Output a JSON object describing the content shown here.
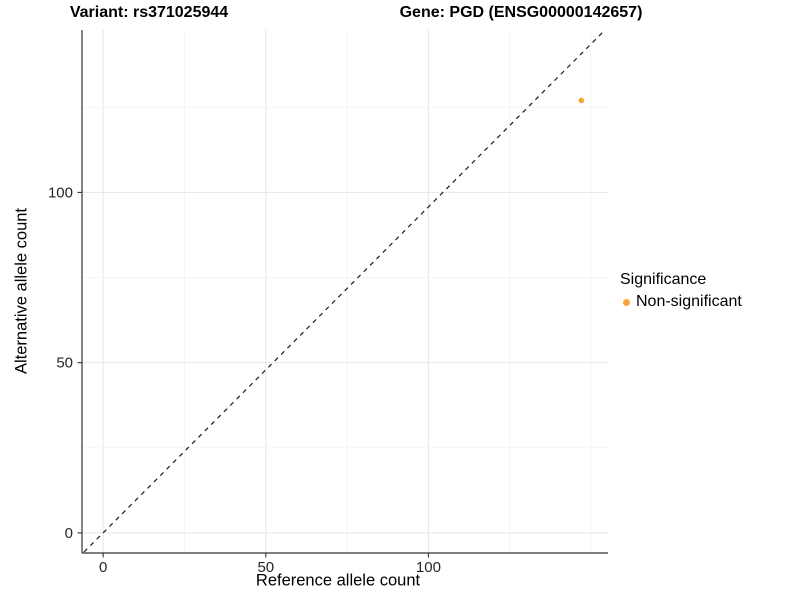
{
  "chart_data": {
    "type": "scatter",
    "title_left": "Variant: rs371025944",
    "title_right": "Gene: PGD (ENSG00000142657)",
    "xlabel": "Reference allele count",
    "ylabel": "Alternative allele count",
    "xlim": [
      -6.5,
      155.2
    ],
    "ylim": [
      -5.9,
      147.7
    ],
    "xticks": [
      0,
      50,
      100
    ],
    "yticks": [
      0,
      50,
      100
    ],
    "x_gridlines": [
      0,
      25,
      50,
      75,
      100,
      125,
      150
    ],
    "y_gridlines": [
      0,
      25,
      50,
      75,
      100,
      125
    ],
    "points": [
      {
        "x": 147,
        "y": 127,
        "series": "Non-significant"
      }
    ],
    "reference_line": {
      "slope": 1,
      "intercept": 0,
      "linetype": "dashed"
    },
    "legend": {
      "title": "Significance",
      "position": "right",
      "items": [
        {
          "label": "Non-significant",
          "color": "#F9A43A"
        }
      ]
    },
    "grid": "on",
    "colors": {
      "point": "#F9A43A",
      "grid_major": "#E9E9E9",
      "grid_minor": "#F3F3F3",
      "axis_line": "#333333",
      "tick_text": "#262626",
      "ref_line": "#1a1a1a"
    }
  }
}
